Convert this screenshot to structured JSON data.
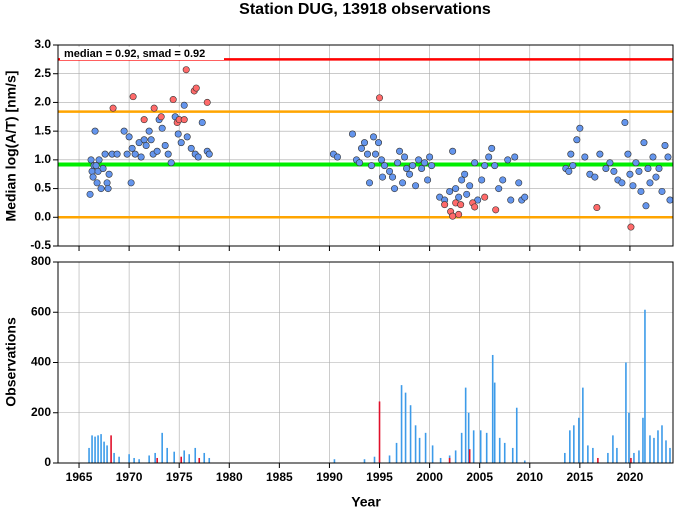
{
  "chart_data": [
    {
      "type": "scatter",
      "title": "Station DUG, 13918 observations",
      "annotation": "median = 0.92, smad = 0.92",
      "ylabel": "Median log(A/T) [nm/s]",
      "xlim": [
        1962.9,
        2024.3
      ],
      "ylim": [
        -0.5,
        3.0
      ],
      "yticks": [
        {
          "value": -0.5,
          "label": "-0.5"
        },
        {
          "value": 0,
          "label": "0.0"
        },
        {
          "value": 0.5,
          "label": "0.5"
        },
        {
          "value": 1,
          "label": "1.0"
        },
        {
          "value": 1.5,
          "label": "1.5"
        },
        {
          "value": 2,
          "label": "2.0"
        },
        {
          "value": 2.5,
          "label": "2.5"
        },
        {
          "value": 3,
          "label": "3.0"
        }
      ],
      "grid": true,
      "hlines": [
        {
          "value": 2.75,
          "color": "#ff0000"
        },
        {
          "value": 1.84,
          "color": "#ffa500"
        },
        {
          "value": 0,
          "color": "#ffa500"
        },
        {
          "value": 0.92,
          "color": "#00ee00"
        }
      ],
      "series": [
        {
          "color": "#6495ed",
          "x": [
            1966.1,
            1966.2,
            1966.3,
            1966.4,
            1966.5,
            1966.6,
            1966.7,
            1966.8,
            1966.9,
            1967.0,
            1967.2,
            1967.4,
            1967.6,
            1967.8,
            1967.9,
            1968.0,
            1968.3,
            1968.8,
            1969.5,
            1969.8,
            1970.0,
            1970.2,
            1970.3,
            1970.6,
            1971.0,
            1971.2,
            1971.5,
            1971.7,
            1972.0,
            1972.2,
            1972.4,
            1972.8,
            1973.0,
            1973.3,
            1973.6,
            1973.9,
            1974.2,
            1974.6,
            1974.9,
            1975.2,
            1975.5,
            1975.8,
            1976.2,
            1976.6,
            1976.9,
            1977.3,
            1977.8,
            1978.0,
            1990.4,
            1990.8,
            1992.3,
            1992.7,
            1993.0,
            1993.2,
            1993.5,
            1993.8,
            1994.0,
            1994.2,
            1994.4,
            1994.6,
            1994.9,
            1995.2,
            1995.3,
            1995.5,
            1996.0,
            1996.3,
            1996.5,
            1996.8,
            1997.0,
            1997.3,
            1997.5,
            1997.7,
            1998.0,
            1998.3,
            1998.6,
            1998.9,
            1999.2,
            1999.5,
            1999.8,
            2000.0,
            2000.2,
            2001.0,
            2001.5,
            2002.0,
            2002.3,
            2002.6,
            2002.9,
            2003.2,
            2003.5,
            2003.7,
            2004.0,
            2004.5,
            2004.8,
            2005.2,
            2005.5,
            2005.9,
            2006.2,
            2006.5,
            2006.9,
            2007.3,
            2007.8,
            2008.1,
            2008.5,
            2008.9,
            2009.2,
            2009.5,
            2013.6,
            2013.9,
            2014.1,
            2014.3,
            2014.7,
            2015.0,
            2015.5,
            2016.0,
            2016.5,
            2017.0,
            2017.6,
            2018.0,
            2018.4,
            2018.8,
            2019.2,
            2019.5,
            2019.8,
            2020.0,
            2020.3,
            2020.6,
            2020.9,
            2021.1,
            2021.4,
            2021.6,
            2021.8,
            2022.0,
            2022.3,
            2022.6,
            2022.9,
            2023.2,
            2023.5,
            2023.8,
            2024.0
          ],
          "values": [
            0.4,
            1.0,
            0.8,
            0.7,
            0.9,
            1.5,
            0.9,
            0.6,
            0.8,
            1.0,
            0.5,
            0.85,
            1.1,
            0.6,
            0.5,
            0.75,
            1.1,
            1.1,
            1.5,
            1.1,
            1.4,
            0.6,
            1.2,
            1.1,
            1.3,
            1.05,
            1.35,
            1.25,
            1.5,
            1.35,
            1.1,
            1.15,
            1.7,
            1.55,
            1.25,
            1.1,
            0.95,
            1.75,
            1.45,
            1.3,
            1.95,
            1.4,
            1.2,
            1.1,
            1.05,
            1.65,
            1.15,
            1.1,
            1.1,
            1.05,
            1.45,
            1.0,
            0.95,
            1.2,
            1.3,
            1.1,
            0.6,
            0.9,
            1.4,
            1.1,
            1.3,
            1.0,
            0.7,
            0.9,
            0.8,
            0.7,
            0.5,
            0.95,
            1.15,
            0.6,
            1.05,
            0.85,
            0.75,
            0.9,
            0.55,
            1.0,
            0.85,
            0.95,
            0.65,
            1.05,
            0.9,
            0.35,
            0.3,
            0.45,
            1.15,
            0.5,
            0.35,
            0.65,
            0.75,
            0.4,
            0.55,
            0.95,
            0.3,
            0.65,
            0.9,
            1.05,
            1.2,
            0.9,
            0.5,
            0.65,
            1.0,
            0.3,
            1.05,
            0.6,
            0.3,
            0.35,
            0.85,
            0.8,
            1.1,
            0.9,
            1.35,
            1.55,
            1.05,
            0.75,
            0.7,
            1.1,
            0.85,
            0.95,
            0.8,
            0.65,
            0.6,
            1.65,
            1.1,
            0.75,
            0.55,
            0.95,
            0.8,
            0.45,
            1.3,
            0.2,
            0.85,
            0.6,
            1.05,
            0.7,
            0.85,
            0.45,
            1.25,
            1.05,
            0.3
          ]
        },
        {
          "color": "#ff6a6a",
          "x": [
            1968.4,
            1970.4,
            1971.5,
            1972.5,
            1973.2,
            1974.4,
            1974.8,
            1975.0,
            1975.5,
            1975.7,
            1976.5,
            1976.7,
            1977.8,
            1995.0,
            2001.5,
            2002.1,
            2002.3,
            2002.6,
            2002.9,
            2003.1,
            2004.3,
            2004.5,
            2005.5,
            2006.6,
            2016.7,
            2020.1
          ],
          "values": [
            1.9,
            2.1,
            1.7,
            1.9,
            1.75,
            2.05,
            1.65,
            1.7,
            1.7,
            2.57,
            2.2,
            2.25,
            2.0,
            2.08,
            0.22,
            0.1,
            0.02,
            0.25,
            0.05,
            0.22,
            0.25,
            0.18,
            0.35,
            0.13,
            0.17,
            -0.17
          ]
        }
      ]
    },
    {
      "type": "bar",
      "ylabel": "Observations",
      "xlabel": "Year",
      "xlim": [
        1962.9,
        2024.3
      ],
      "ylim": [
        0,
        800
      ],
      "yticks": [
        0,
        200,
        400,
        600,
        800
      ],
      "xticks": [
        1965,
        1970,
        1975,
        1980,
        1985,
        1990,
        1995,
        2000,
        2005,
        2010,
        2015,
        2020
      ],
      "grid": true,
      "series": [
        {
          "color": "#3d9be9",
          "x": [
            1966.0,
            1966.3,
            1966.6,
            1966.9,
            1967.2,
            1967.5,
            1967.8,
            1968.5,
            1969.0,
            1970.0,
            1970.5,
            1971.0,
            1972.0,
            1972.6,
            1973.3,
            1973.8,
            1974.5,
            1975.5,
            1976.0,
            1976.6,
            1977.5,
            1978.0,
            1990.5,
            1993.5,
            1994.5,
            1996.0,
            1996.7,
            1997.2,
            1997.6,
            1998.1,
            1998.6,
            1999.0,
            1999.6,
            2000.3,
            2001.1,
            2002.0,
            2002.6,
            2003.2,
            2003.6,
            2003.9,
            2004.4,
            2005.1,
            2005.7,
            2006.3,
            2006.5,
            2007.0,
            2007.5,
            2008.3,
            2008.7,
            2009.5,
            2013.5,
            2014.0,
            2014.4,
            2014.9,
            2015.3,
            2015.8,
            2016.3,
            2017.8,
            2018.3,
            2018.7,
            2019.6,
            2019.9,
            2020.4,
            2020.9,
            2021.3,
            2021.5,
            2022.0,
            2022.4,
            2022.8,
            2023.2,
            2023.6,
            2024.0
          ],
          "values": [
            60,
            110,
            105,
            110,
            115,
            85,
            70,
            40,
            25,
            35,
            20,
            15,
            30,
            40,
            120,
            60,
            45,
            50,
            35,
            60,
            40,
            20,
            15,
            15,
            25,
            30,
            80,
            310,
            280,
            230,
            150,
            100,
            120,
            70,
            20,
            30,
            50,
            120,
            300,
            200,
            130,
            130,
            120,
            430,
            320,
            100,
            80,
            60,
            220,
            10,
            40,
            130,
            150,
            180,
            300,
            70,
            60,
            40,
            110,
            60,
            400,
            200,
            40,
            50,
            180,
            610,
            110,
            100,
            130,
            150,
            90,
            60
          ]
        },
        {
          "color": "#e0102a",
          "x": [
            1968.2,
            1972.8,
            1975.2,
            1977.0,
            1995.0,
            2002.0,
            2004.0,
            2016.8,
            2020.1
          ],
          "values": [
            110,
            20,
            25,
            20,
            245,
            20,
            55,
            20,
            20
          ]
        }
      ]
    }
  ]
}
